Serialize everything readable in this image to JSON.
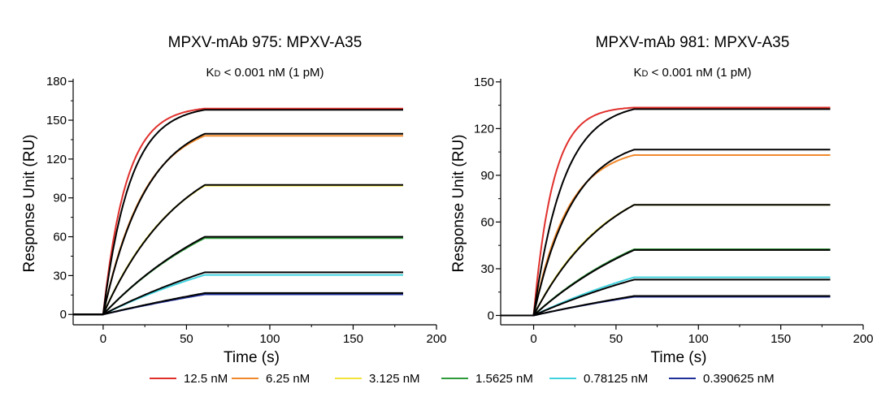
{
  "chart_data": [
    {
      "type": "line",
      "title": "MPXV-mAb 975: MPXV-A35",
      "kd_prefix": "K",
      "kd_sub": "D",
      "kd_rest": " < 0.001 nM (1 pM)",
      "xlabel": "Time (s)",
      "ylabel": "Response Unit (RU)",
      "xlim": [
        -18,
        200
      ],
      "ylim": [
        -8,
        182
      ],
      "xticks": [
        "0",
        "50",
        "100",
        "150",
        "200"
      ],
      "xtick_values": [
        0,
        50,
        100,
        150,
        200
      ],
      "yticks": [
        "0",
        "30",
        "60",
        "90",
        "120",
        "150",
        "180"
      ],
      "ytick_values": [
        0,
        30,
        60,
        90,
        120,
        150,
        180
      ],
      "baseline_start": -18,
      "injection_end": 61,
      "end_time": 180,
      "series": [
        {
          "name": "12.5 nM",
          "color": "#e0302c",
          "plateau": 159,
          "rate": 0.072
        },
        {
          "name": "6.25 nM",
          "color": "#f0892c",
          "plateau": 138,
          "rate": 0.04
        },
        {
          "name": "3.125 nM",
          "color": "#f2e23c",
          "plateau": 99.5,
          "rate": 0.022
        },
        {
          "name": "1.5625 nM",
          "color": "#2e9a3a",
          "plateau": 59,
          "rate": 0.012
        },
        {
          "name": "0.78125 nM",
          "color": "#3fd2de",
          "plateau": 30.5,
          "rate": 0.008
        },
        {
          "name": "0.390625 nM",
          "color": "#1f2f98",
          "plateau": 15.5,
          "rate": 0.005
        }
      ],
      "fits": [
        {
          "plateau": 158,
          "rate": 0.062
        },
        {
          "plateau": 139.5,
          "rate": 0.038
        },
        {
          "plateau": 100,
          "rate": 0.021
        },
        {
          "plateau": 60,
          "rate": 0.0115
        },
        {
          "plateau": 32.5,
          "rate": 0.0075
        },
        {
          "plateau": 16.5,
          "rate": 0.0045
        }
      ]
    },
    {
      "type": "line",
      "title": "MPXV-mAb 981: MPXV-A35",
      "kd_prefix": "K",
      "kd_sub": "D",
      "kd_rest": " < 0.001 nM (1 pM)",
      "xlabel": "Time (s)",
      "ylabel": "Response Unit (RU)",
      "xlim": [
        -20,
        200
      ],
      "ylim": [
        -6,
        152
      ],
      "xticks": [
        "0",
        "50",
        "100",
        "150",
        "200"
      ],
      "xtick_values": [
        0,
        50,
        100,
        150,
        200
      ],
      "yticks": [
        "0",
        "30",
        "60",
        "90",
        "120",
        "150"
      ],
      "ytick_values": [
        0,
        30,
        60,
        90,
        120,
        150
      ],
      "baseline_start": -20,
      "injection_end": 61,
      "end_time": 180,
      "series": [
        {
          "name": "12.5 nM",
          "color": "#e0302c",
          "plateau": 133.5,
          "rate": 0.085
        },
        {
          "name": "6.25 nM",
          "color": "#f0892c",
          "plateau": 103,
          "rate": 0.048
        },
        {
          "name": "3.125 nM",
          "color": "#f2e23c",
          "plateau": 71,
          "rate": 0.022
        },
        {
          "name": "1.5625 nM",
          "color": "#2e9a3a",
          "plateau": 42.5,
          "rate": 0.012
        },
        {
          "name": "0.78125 nM",
          "color": "#3fd2de",
          "plateau": 24.5,
          "rate": 0.008
        },
        {
          "name": "0.390625 nM",
          "color": "#1f2f98",
          "plateau": 12,
          "rate": 0.006
        }
      ],
      "fits": [
        {
          "plateau": 132.5,
          "rate": 0.055
        },
        {
          "plateau": 106.5,
          "rate": 0.042
        },
        {
          "plateau": 71,
          "rate": 0.021
        },
        {
          "plateau": 42,
          "rate": 0.0115
        },
        {
          "plateau": 23,
          "rate": 0.0075
        },
        {
          "plateau": 12.5,
          "rate": 0.005
        }
      ]
    }
  ],
  "legend": [
    {
      "label": "12.5 nM",
      "color": "#e0302c"
    },
    {
      "label": "6.25 nM",
      "color": "#f0892c"
    },
    {
      "label": "3.125 nM",
      "color": "#f2e23c"
    },
    {
      "label": "1.5625 nM",
      "color": "#2e9a3a"
    },
    {
      "label": "0.78125 nM",
      "color": "#3fd2de"
    },
    {
      "label": "0.390625 nM",
      "color": "#1f2f98"
    }
  ]
}
